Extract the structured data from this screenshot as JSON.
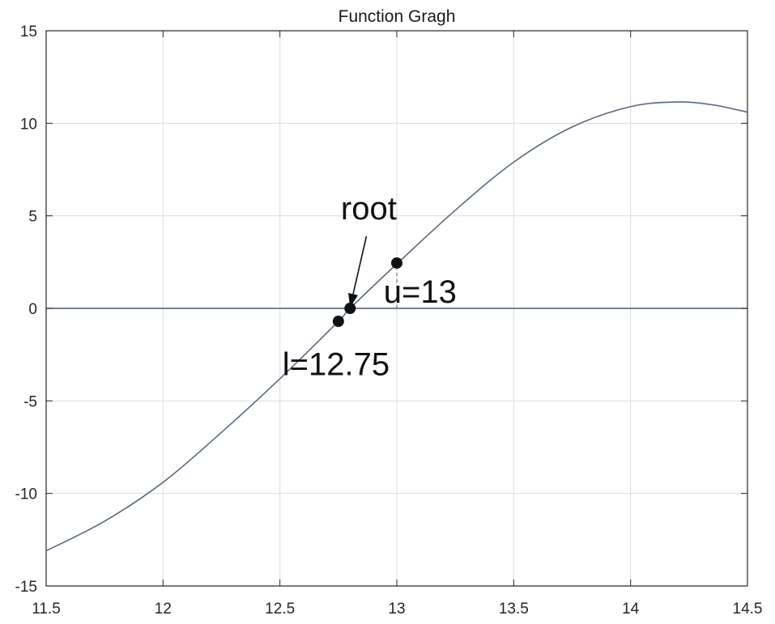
{
  "chart_data": {
    "type": "line",
    "title": "Function Gragh",
    "xlabel": "",
    "ylabel": "",
    "xlim": [
      11.5,
      14.5
    ],
    "ylim": [
      -15,
      15
    ],
    "grid": true,
    "x_ticks": [
      11.5,
      12,
      12.5,
      13,
      13.5,
      14,
      14.5
    ],
    "x_tick_labels": [
      "11.5",
      "12",
      "12.5",
      "13",
      "13.5",
      "14",
      "14.5"
    ],
    "y_ticks": [
      -15,
      -10,
      -5,
      0,
      5,
      10,
      15
    ],
    "y_tick_labels": [
      "-15",
      "-10",
      "-5",
      "0",
      "5",
      "10",
      "15"
    ],
    "curve_color": "#5a6a7e",
    "series": [
      {
        "x": [
          11.5,
          11.75,
          12.0,
          12.25,
          12.5,
          12.75,
          12.8,
          13.0,
          13.25,
          13.5,
          13.75,
          14.0,
          14.2,
          14.35,
          14.5
        ],
        "y": [
          -13.1,
          -11.5,
          -9.4,
          -6.7,
          -3.8,
          -0.7,
          0.0,
          2.4,
          5.3,
          7.9,
          9.8,
          10.9,
          11.15,
          11.0,
          10.6
        ]
      }
    ],
    "zero_line": {
      "y": 0,
      "color": "#4a5a6e"
    },
    "markers": [
      {
        "x": 12.75,
        "y": -0.7
      },
      {
        "x": 12.8,
        "y": 0.0
      },
      {
        "x": 13.0,
        "y": 2.45
      }
    ],
    "annotations": [
      {
        "text": "root",
        "x": 12.88,
        "y": 4.8
      },
      {
        "text": "u=13",
        "x": 13.1,
        "y": 0.3
      },
      {
        "text": "l=12.75",
        "x": 12.74,
        "y": -3.6
      }
    ],
    "arrow": {
      "from": [
        12.87,
        3.9
      ],
      "to": [
        12.8,
        0.05
      ]
    },
    "dashed_segment": {
      "x": 13.0,
      "y_from": 0,
      "y_to": 2.45
    }
  }
}
